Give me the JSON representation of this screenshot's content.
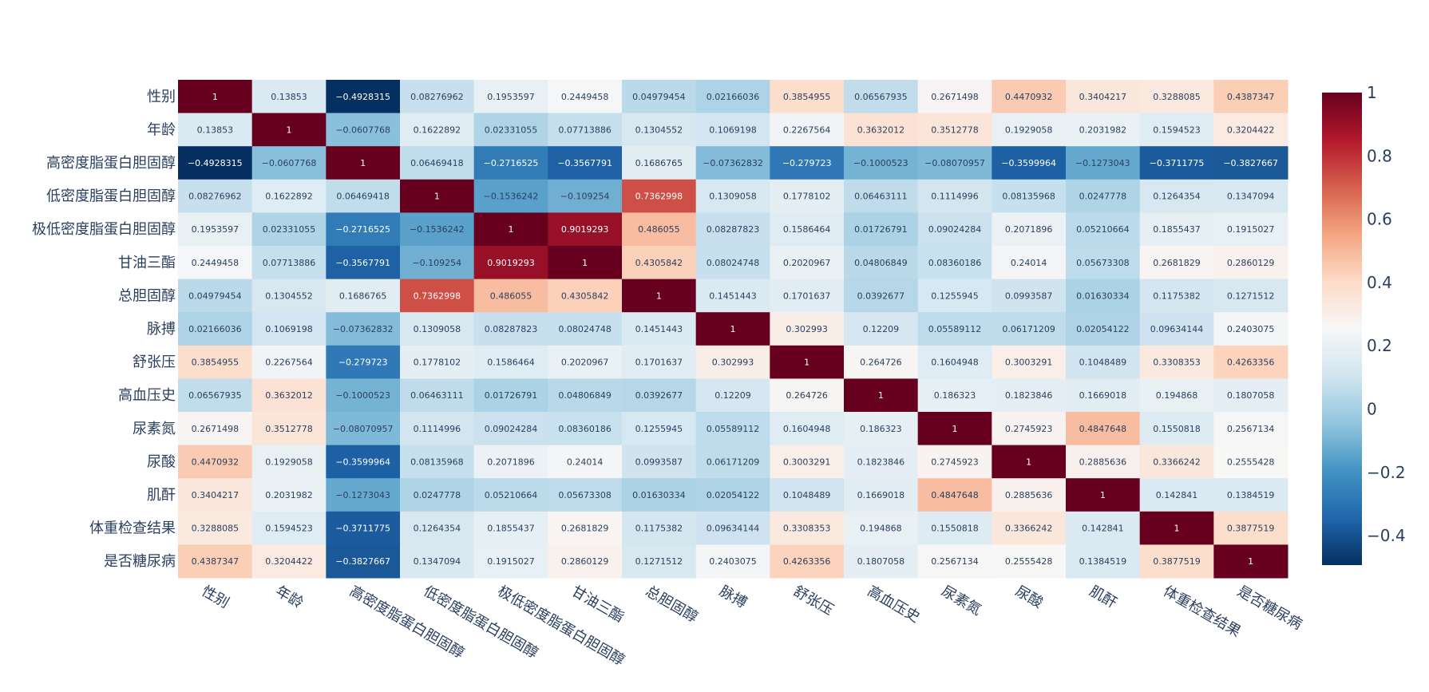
{
  "chart_data": {
    "type": "heatmap",
    "title": "",
    "xlabel": "",
    "ylabel": "",
    "labels": [
      "性别",
      "年龄",
      "高密度脂蛋白胆固醇",
      "低密度脂蛋白胆固醇",
      "极低密度脂蛋白胆固醇",
      "甘油三酯",
      "总胆固醇",
      "脉搏",
      "舒张压",
      "高血压史",
      "尿素氮",
      "尿酸",
      "肌酐",
      "体重检查结果",
      "是否糖尿病"
    ],
    "z": [
      [
        "1",
        "0.13853",
        "−0.4928315",
        "0.08276962",
        "0.1953597",
        "0.2449458",
        "0.04979454",
        "0.02166036",
        "0.3854955",
        "0.06567935",
        "0.2671498",
        "0.4470932",
        "0.3404217",
        "0.3288085",
        "0.4387347"
      ],
      [
        "0.13853",
        "1",
        "−0.0607768",
        "0.1622892",
        "0.02331055",
        "0.07713886",
        "0.1304552",
        "0.1069198",
        "0.2267564",
        "0.3632012",
        "0.3512778",
        "0.1929058",
        "0.2031982",
        "0.1594523",
        "0.3204422"
      ],
      [
        "−0.4928315",
        "−0.0607768",
        "1",
        "0.06469418",
        "−0.2716525",
        "−0.3567791",
        "0.1686765",
        "−0.07362832",
        "−0.279723",
        "−0.1000523",
        "−0.08070957",
        "−0.3599964",
        "−0.1273043",
        "−0.3711775",
        "−0.3827667"
      ],
      [
        "0.08276962",
        "0.1622892",
        "0.06469418",
        "1",
        "−0.1536242",
        "−0.109254",
        "0.7362998",
        "0.1309058",
        "0.1778102",
        "0.06463111",
        "0.1114996",
        "0.08135968",
        "0.0247778",
        "0.1264354",
        "0.1347094"
      ],
      [
        "0.1953597",
        "0.02331055",
        "−0.2716525",
        "−0.1536242",
        "1",
        "0.9019293",
        "0.486055",
        "0.08287823",
        "0.1586464",
        "0.01726791",
        "0.09024284",
        "0.2071896",
        "0.05210664",
        "0.1855437",
        "0.1915027"
      ],
      [
        "0.2449458",
        "0.07713886",
        "−0.3567791",
        "−0.109254",
        "0.9019293",
        "1",
        "0.4305842",
        "0.08024748",
        "0.2020967",
        "0.04806849",
        "0.08360186",
        "0.24014",
        "0.05673308",
        "0.2681829",
        "0.2860129"
      ],
      [
        "0.04979454",
        "0.1304552",
        "0.1686765",
        "0.7362998",
        "0.486055",
        "0.4305842",
        "1",
        "0.1451443",
        "0.1701637",
        "0.0392677",
        "0.1255945",
        "0.0993587",
        "0.01630334",
        "0.1175382",
        "0.1271512"
      ],
      [
        "0.02166036",
        "0.1069198",
        "−0.07362832",
        "0.1309058",
        "0.08287823",
        "0.08024748",
        "0.1451443",
        "1",
        "0.302993",
        "0.12209",
        "0.05589112",
        "0.06171209",
        "0.02054122",
        "0.09634144",
        "0.2403075"
      ],
      [
        "0.3854955",
        "0.2267564",
        "−0.279723",
        "0.1778102",
        "0.1586464",
        "0.2020967",
        "0.1701637",
        "0.302993",
        "1",
        "0.264726",
        "0.1604948",
        "0.3003291",
        "0.1048489",
        "0.3308353",
        "0.4263356"
      ],
      [
        "0.06567935",
        "0.3632012",
        "−0.1000523",
        "0.06463111",
        "0.01726791",
        "0.04806849",
        "0.0392677",
        "0.12209",
        "0.264726",
        "1",
        "0.186323",
        "0.1823846",
        "0.1669018",
        "0.194868",
        "0.1807058"
      ],
      [
        "0.2671498",
        "0.3512778",
        "−0.08070957",
        "0.1114996",
        "0.09024284",
        "0.08360186",
        "0.1255945",
        "0.05589112",
        "0.1604948",
        "0.186323",
        "1",
        "0.2745923",
        "0.4847648",
        "0.1550818",
        "0.2567134"
      ],
      [
        "0.4470932",
        "0.1929058",
        "−0.3599964",
        "0.08135968",
        "0.2071896",
        "0.24014",
        "0.0993587",
        "0.06171209",
        "0.3003291",
        "0.1823846",
        "0.2745923",
        "1",
        "0.2885636",
        "0.3366242",
        "0.2555428"
      ],
      [
        "0.3404217",
        "0.2031982",
        "−0.1273043",
        "0.0247778",
        "0.05210664",
        "0.05673308",
        "0.01630334",
        "0.02054122",
        "0.1048489",
        "0.1669018",
        "0.4847648",
        "0.2885636",
        "1",
        "0.142841",
        "0.1384519"
      ],
      [
        "0.3288085",
        "0.1594523",
        "−0.3711775",
        "0.1264354",
        "0.1855437",
        "0.2681829",
        "0.1175382",
        "0.09634144",
        "0.3308353",
        "0.194868",
        "0.1550818",
        "0.3366242",
        "0.142841",
        "1",
        "0.3877519"
      ],
      [
        "0.4387347",
        "0.3204422",
        "−0.3827667",
        "0.1347094",
        "0.1915027",
        "0.2860129",
        "0.1271512",
        "0.2403075",
        "0.4263356",
        "0.1807058",
        "0.2567134",
        "0.2555428",
        "0.1384519",
        "0.3877519",
        "1"
      ]
    ],
    "colorscale": {
      "name": "RdBu",
      "zmin": -0.4928315,
      "zmax": 1,
      "stops": [
        "#053061",
        "#2166ac",
        "#4393c3",
        "#92c5de",
        "#d1e5f0",
        "#f7f7f7",
        "#fddbc7",
        "#f4a582",
        "#d6604d",
        "#b2182b",
        "#67001f"
      ]
    },
    "colorbar_ticks": [
      {
        "value": 1,
        "label": "1"
      },
      {
        "value": 0.8,
        "label": "0.8"
      },
      {
        "value": 0.6,
        "label": "0.6"
      },
      {
        "value": 0.4,
        "label": "0.4"
      },
      {
        "value": 0.2,
        "label": "0.2"
      },
      {
        "value": 0,
        "label": "0"
      },
      {
        "value": -0.2,
        "label": "−0.2"
      },
      {
        "value": -0.4,
        "label": "−0.4"
      }
    ]
  }
}
